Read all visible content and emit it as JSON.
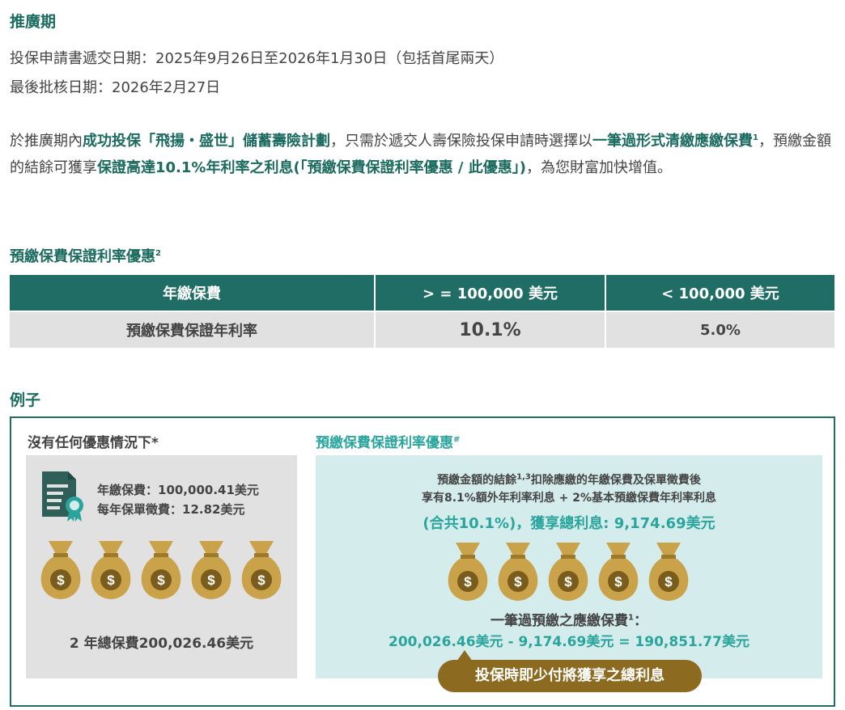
{
  "section": {
    "title": "推廣期",
    "line1": "投保申請書遞交日期：2025年9月26日至2026年1月30日（包括首尾兩天）",
    "line2": "最後批核日期：2026年2月27日"
  },
  "intro": {
    "p1": "於推廣期內",
    "b1": "成功投保「飛揚・盛世」儲蓄壽險計劃",
    "p2": "，只需於遞交人壽保險投保申請時選擇以",
    "b2": "一筆過形式清繳應繳保費",
    "sup1": "1",
    "p3": "，預繳金額的結餘可獲享",
    "b3": "保證高達10.1%年利率之利息(「預繳保費保證利率優惠 / 此優惠」)",
    "p4": "，為您財富加快增值。"
  },
  "rate_table": {
    "title": "預繳保費保證利率優惠",
    "title_sup": "2",
    "headers": [
      "年繳保費",
      "> = 100,000 美元",
      "< 100,000 美元"
    ],
    "row": [
      "預繳保費保證年利率",
      "10.1%",
      "5.0%"
    ]
  },
  "example": {
    "title": "例子",
    "left": {
      "title": "沒有任何優惠情況下*",
      "fee1": "年繳保費：100,000.41美元",
      "fee2": "每年保單徵費：12.82美元",
      "total": "2 年總保費200,026.46美元"
    },
    "right": {
      "title": "預繳保費保證利率優惠",
      "title_sup": "#",
      "desc1_a": "預繳金額的結餘",
      "desc1_sup": "1,3",
      "desc1_b": "扣除應繳的年繳保費及保單徵費後",
      "desc2": "享有8.1%額外年利率利息 + 2%基本預繳保費年利率利息",
      "highlight": "(合共10.1%)，獲享總利息: 9,174.69美元",
      "formula_label_a": "一筆過預繳之應繳保費",
      "formula_label_sup": "1",
      "formula_label_b": "：",
      "formula": "200,026.46美元 - 9,174.69美元 = 190,851.77美元"
    },
    "pill": "投保時即少付將獲享之總利息",
    "bag_symbol": "$",
    "colors": {
      "teal": "#1f6d64",
      "accent": "#2aa59d",
      "gold": "#c9a24a",
      "brown": "#8c6a1f"
    }
  }
}
